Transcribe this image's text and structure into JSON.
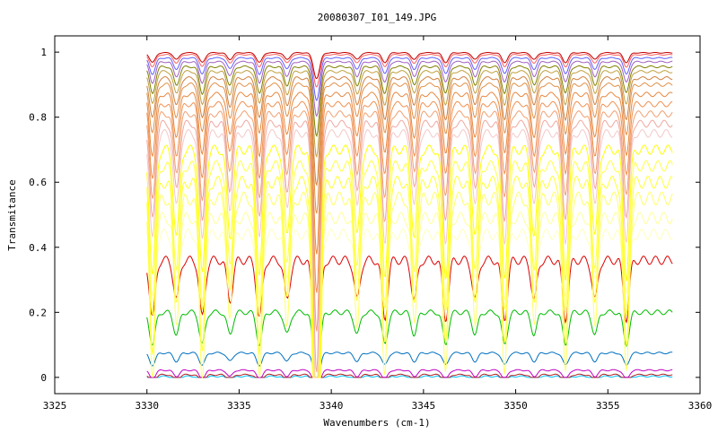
{
  "chart_data": {
    "type": "line",
    "title": "20080307_I01_149.JPG",
    "xlabel": "Wavenumbers (cm-1)",
    "ylabel": "Transmitance",
    "xlim": [
      3325,
      3360
    ],
    "ylim": [
      -0.05,
      1.05
    ],
    "x_ticks": [
      "3325",
      "3330",
      "3335",
      "3340",
      "3345",
      "3350",
      "3355",
      "3360"
    ],
    "y_ticks": [
      "0",
      "0.2",
      "0.4",
      "0.6",
      "0.8",
      "1"
    ],
    "x_range_data": [
      3330,
      3358.5
    ],
    "absorption_lines": [
      3330.3,
      3331.6,
      3333.0,
      3334.5,
      3336.1,
      3337.6,
      3339.2,
      3341.4,
      3342.9,
      3344.5,
      3346.2,
      3347.8,
      3349.4,
      3351.0,
      3352.7,
      3354.3,
      3356.0
    ],
    "major_line": 3339.2,
    "grid": false,
    "legend": "none",
    "series": [
      {
        "baseline": 0.003,
        "color": "#00bfff"
      },
      {
        "baseline": 0.008,
        "color": "#b22222"
      },
      {
        "baseline": 0.022,
        "color": "#c000c0"
      },
      {
        "baseline": 0.075,
        "color": "#0070c0"
      },
      {
        "baseline": 0.2,
        "color": "#00bb00"
      },
      {
        "baseline": 0.36,
        "color": "#dd0000"
      },
      {
        "baseline": 0.44,
        "color": "#ffffbb"
      },
      {
        "baseline": 0.49,
        "color": "#ffff99"
      },
      {
        "baseline": 0.55,
        "color": "#ffff66"
      },
      {
        "baseline": 0.6,
        "color": "#ffff33"
      },
      {
        "baseline": 0.65,
        "color": "#ffff44"
      },
      {
        "baseline": 0.7,
        "color": "#ffff00"
      },
      {
        "baseline": 0.75,
        "color": "#f5c8c8"
      },
      {
        "baseline": 0.78,
        "color": "#f0a8a0"
      },
      {
        "baseline": 0.81,
        "color": "#f0a070"
      },
      {
        "baseline": 0.84,
        "color": "#f09050"
      },
      {
        "baseline": 0.87,
        "color": "#e88840"
      },
      {
        "baseline": 0.9,
        "color": "#e09048"
      },
      {
        "baseline": 0.92,
        "color": "#d08040"
      },
      {
        "baseline": 0.94,
        "color": "#c0a040"
      },
      {
        "baseline": 0.955,
        "color": "#808000"
      },
      {
        "baseline": 0.97,
        "color": "#a060c0"
      },
      {
        "baseline": 0.982,
        "color": "#6060ff"
      },
      {
        "baseline": 0.992,
        "color": "#ff6060"
      },
      {
        "baseline": 0.998,
        "color": "#c00000"
      }
    ]
  }
}
